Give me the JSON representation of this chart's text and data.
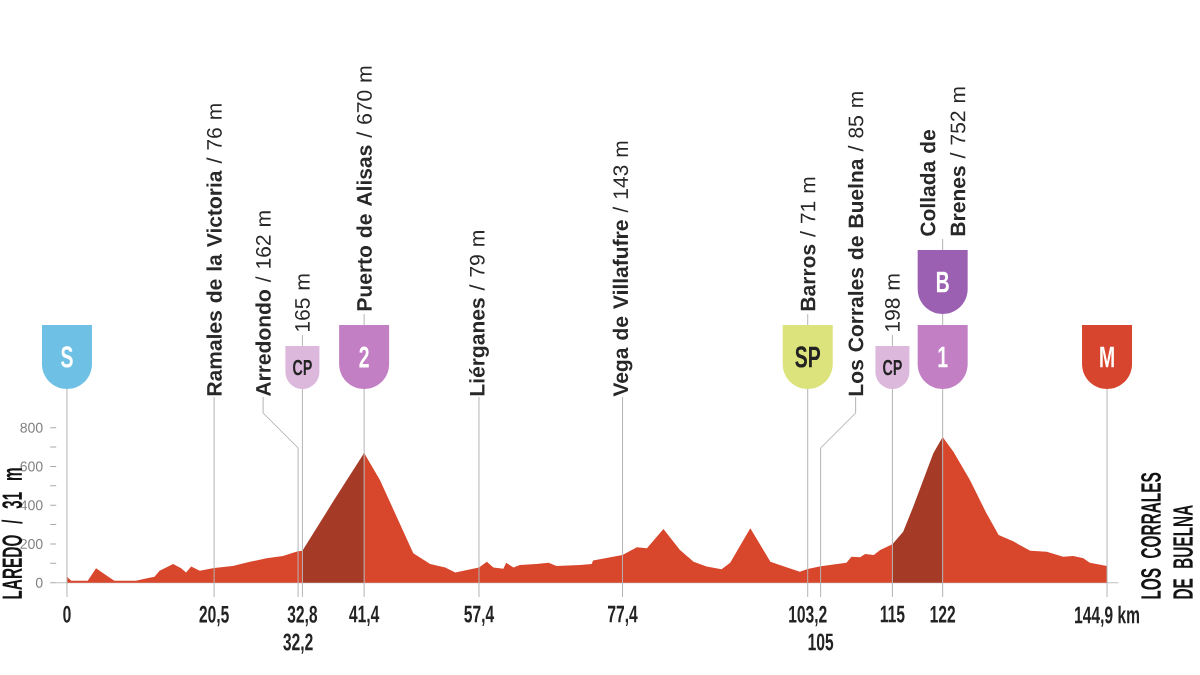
{
  "chart_data": {
    "type": "area",
    "annotations": [
      "LAREDO / 31 m",
      "LOS CORRALES DE BUELNA",
      "S",
      "CP",
      "2",
      "SP",
      "CP",
      "1",
      "B",
      "M",
      {
        "text": "32,2",
        "x": 32.2,
        "y": 0
      },
      {
        "text": "105",
        "x": 105,
        "y": 0
      }
    ],
    "xlim": [
      -1.5,
      146.5
    ],
    "xticks": [
      0,
      {
        "value": 20.5,
        "label": "20,5"
      },
      {
        "value": 32.8,
        "label": "32,8"
      },
      {
        "value": 41.4,
        "label": "41,4"
      },
      {
        "value": 57.4,
        "label": "57,4"
      },
      {
        "value": 77.4,
        "label": "77,4"
      },
      {
        "value": 103.2,
        "label": "103,2"
      },
      115,
      122,
      {
        "value": 144.9,
        "label": "144,9 km"
      }
    ],
    "ylim": [
      0,
      800
    ],
    "yticks": [
      0,
      {
        "value": 100,
        "label": null
      },
      200,
      {
        "value": 300,
        "label": null
      },
      400,
      {
        "value": 500,
        "label": null
      },
      600,
      {
        "value": 700,
        "label": null
      },
      800
    ],
    "series": [
      {
        "color": "#d8462c",
        "x": [
          0,
          0.6,
          2.9,
          4.05,
          5.4,
          6.6,
          9.6,
          11,
          12.2,
          12.9,
          14.8,
          15.9,
          16.6,
          17.3,
          18.5,
          20.5,
          23.1,
          25.5,
          27.8,
          30.1,
          31.5,
          32.2,
          32.8
        ],
        "values": [
          31,
          10,
          10,
          75,
          40,
          10,
          10,
          22,
          31,
          62,
          96,
          74,
          52,
          83,
          62,
          76,
          86,
          108,
          126,
          138,
          155,
          162,
          165
        ]
      },
      {
        "color": "#a53a26",
        "x": [
          32.8,
          37.1,
          41.4
        ],
        "values": [
          165,
          420,
          670
        ]
      },
      {
        "color": "#d8462c",
        "x": [
          41.4,
          43.6,
          48.25,
          50.6,
          52.7,
          54.1,
          57.4,
          58.5,
          59.4,
          60.8,
          61.2,
          62.2,
          63.1,
          65.4,
          67.1,
          68.2,
          71.5,
          73.1,
          73.3,
          77.4,
          79.4,
          80.8,
          83.1,
          85.4,
          87.3,
          89.1,
          91.2,
          92.4,
          95.2,
          98,
          99.3,
          102.1,
          103.2,
          105,
          108.6,
          109.3,
          110.5,
          111.2,
          112.4,
          113.3,
          115
        ],
        "values": [
          670,
          530,
          152,
          96,
          79,
          52,
          79,
          108,
          79,
          72,
          103,
          79,
          91,
          96,
          103,
          86,
          91,
          96,
          114,
          143,
          183,
          178,
          277,
          169,
          108,
          83,
          69,
          103,
          281,
          108,
          91,
          57,
          71,
          85,
          103,
          134,
          131,
          148,
          143,
          169,
          198
        ]
      },
      {
        "color": "#a53a26",
        "x": [
          115,
          116.5,
          117.9,
          119.3,
          120.7,
          122
        ],
        "values": [
          198,
          263,
          392,
          530,
          668,
          752
        ]
      },
      {
        "color": "#d8462c",
        "x": [
          122,
          123.5,
          125.8,
          128.1,
          129.8,
          131.9,
          134.2,
          136.5,
          138.8,
          140.2,
          141.6,
          142.5,
          144.9
        ],
        "values": [
          752,
          676,
          530,
          358,
          246,
          212,
          165,
          160,
          134,
          138,
          126,
          103,
          86
        ]
      }
    ],
    "ref_lines": [
      {
        "axis": "x",
        "value": 0,
        "color": "#b4b4b4"
      },
      {
        "axis": "x",
        "value": 20.5,
        "label": "**Ramales de la Victoria** / 76 m",
        "color": "#b4b4b4"
      },
      {
        "axis": "x",
        "value": 32.2,
        "label": "**Arredondo** / 162 m",
        "color": "#b4b4b4"
      },
      {
        "axis": "x",
        "value": 32.8,
        "label": "165 m",
        "color": "#b4b4b4"
      },
      {
        "axis": "x",
        "value": 41.4,
        "label": "**Puerto de Alisas** / 670 m",
        "color": "#b4b4b4"
      },
      {
        "axis": "x",
        "value": 57.4,
        "label": "**Liérganes** / 79 m",
        "color": "#b4b4b4"
      },
      {
        "axis": "x",
        "value": 77.4,
        "label": "**Vega de Villafufre** / 143 m",
        "color": "#b4b4b4"
      },
      {
        "axis": "x",
        "value": 103.2,
        "label": "**Barros** / 71 m",
        "color": "#b4b4b4"
      },
      {
        "axis": "x",
        "value": 105,
        "label": "**Los Corrales de Buelna** / 85 m",
        "color": "#b4b4b4"
      },
      {
        "axis": "x",
        "value": 115,
        "label": "198 m",
        "color": "#b4b4b4"
      },
      {
        "axis": "x",
        "value": 122,
        "label": "**Collada de Brenes** / 752 m",
        "color": "#b4b4b4"
      },
      {
        "axis": "x",
        "value": 144.9,
        "color": "#b4b4b4"
      }
    ]
  }
}
